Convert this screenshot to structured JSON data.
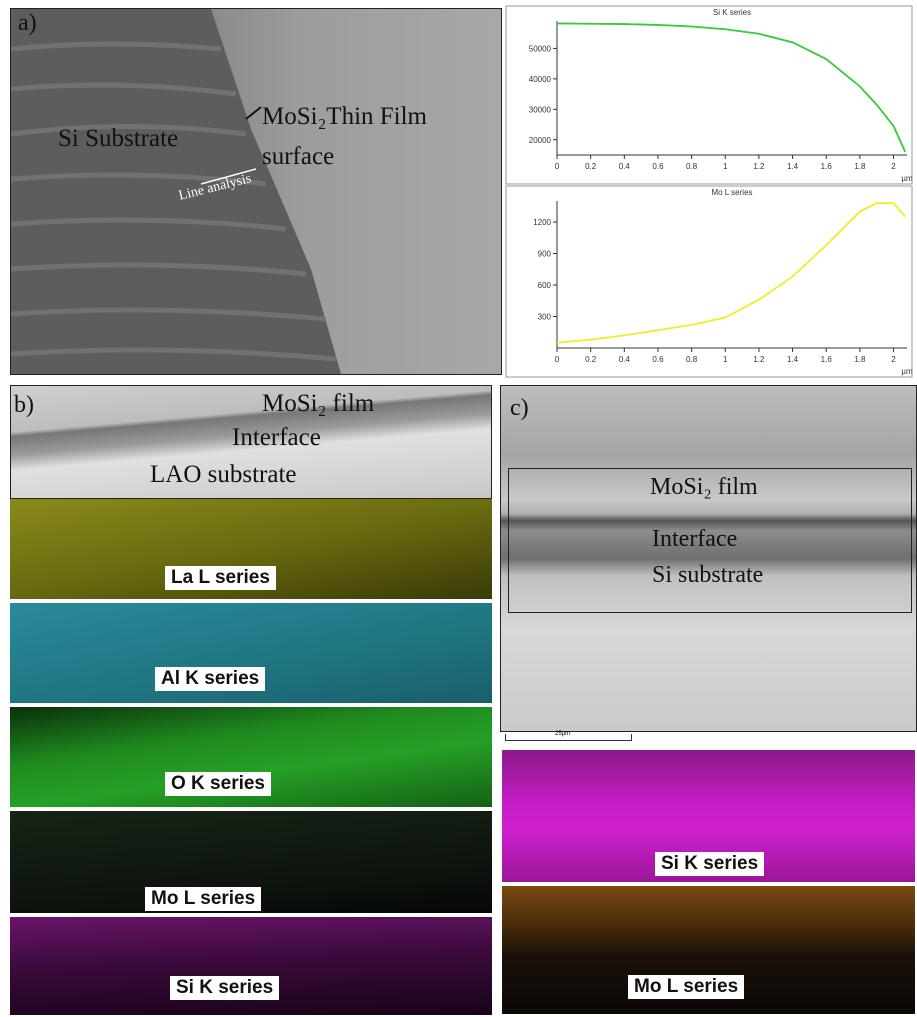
{
  "panel_a": {
    "label": "a)",
    "substrate": "Si Substrate",
    "film": "MoSi₂Thin Film",
    "surface": "surface",
    "line": "Line analysis"
  },
  "panel_b": {
    "label": "b)",
    "film": "MoSi₂ film",
    "interface": "Interface",
    "substrate": "LAO substrate",
    "maps": [
      "La L series",
      "Al K series",
      "O K series",
      "Mo L series",
      "Si K series"
    ]
  },
  "panel_c": {
    "label": "c)",
    "film": "MoSi₂ film",
    "interface": "Interface",
    "substrate": "Si substrate",
    "scale": "25µm",
    "maps": [
      "Si K series",
      "Mo L series"
    ]
  },
  "chart_data": [
    {
      "type": "line",
      "title": "Si K series",
      "xlabel": "µm",
      "color": "#33cc33",
      "x": [
        0,
        0.2,
        0.4,
        0.6,
        0.8,
        1.0,
        1.2,
        1.4,
        1.6,
        1.8,
        1.9,
        2.0,
        2.07
      ],
      "values": [
        58200,
        58100,
        58000,
        57700,
        57200,
        56300,
        54800,
        52000,
        46500,
        37500,
        31500,
        24500,
        16000
      ],
      "xlim": [
        0,
        2.08
      ],
      "ylim": [
        15000,
        59000
      ],
      "xticks": [
        0,
        0.2,
        0.4,
        0.6,
        0.8,
        1,
        1.2,
        1.4,
        1.6,
        1.8,
        2
      ],
      "yticks": [
        20000,
        30000,
        40000,
        50000
      ]
    },
    {
      "type": "line",
      "title": "Mo L series",
      "xlabel": "µm",
      "color": "#eeee22",
      "x": [
        0,
        0.2,
        0.4,
        0.6,
        0.8,
        1.0,
        1.2,
        1.4,
        1.6,
        1.8,
        1.9,
        2.0,
        2.07
      ],
      "values": [
        50,
        80,
        120,
        170,
        220,
        290,
        460,
        680,
        980,
        1300,
        1380,
        1380,
        1250
      ],
      "xlim": [
        0,
        2.08
      ],
      "ylim": [
        0,
        1400
      ],
      "xticks": [
        0,
        0.2,
        0.4,
        0.6,
        0.8,
        1,
        1.2,
        1.4,
        1.6,
        1.8,
        2
      ],
      "yticks": [
        300,
        600,
        900,
        1200
      ]
    }
  ]
}
